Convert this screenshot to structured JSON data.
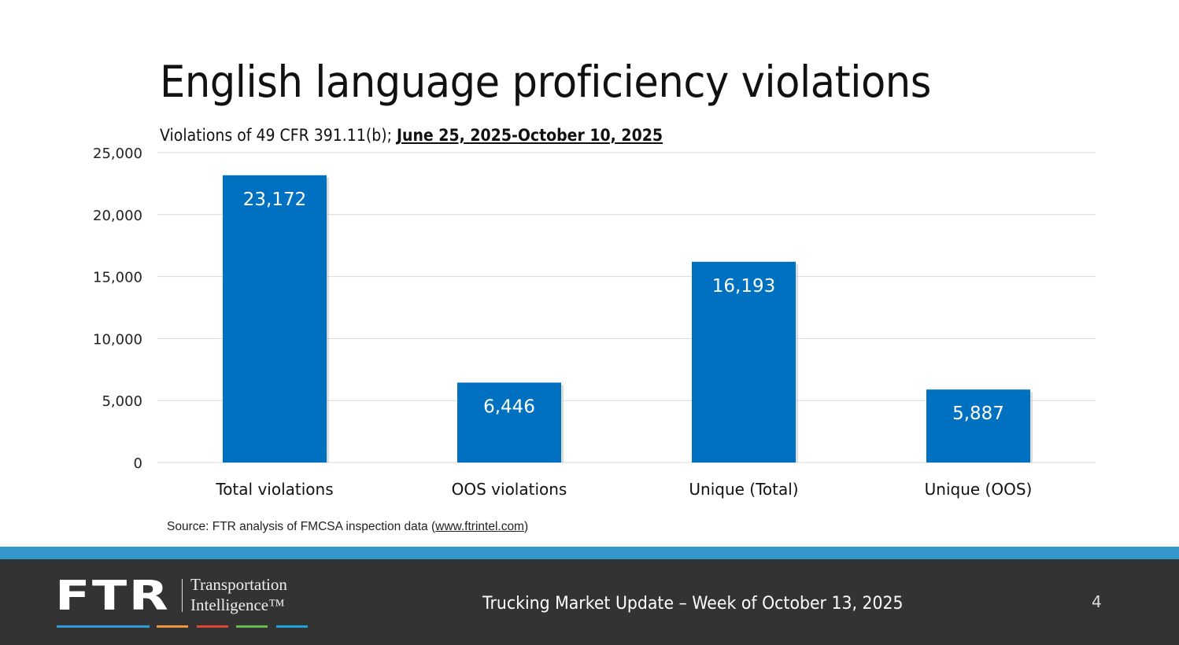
{
  "title": "English language proficiency violations",
  "subtitle": {
    "prefix": "Violations of 49 CFR 391.11(b); ",
    "range": "June 25, 2025-October 10, 2025"
  },
  "source": {
    "prefix": "Source: FTR analysis of FMCSA inspection data (",
    "link": "www.ftrintel.com",
    "suffix": ")"
  },
  "footer": {
    "logo_main": "FTR",
    "logo_line1": "Transportation",
    "logo_line2": "Intelligence™",
    "text": "Trucking Market Update – Week of October 13, 2025",
    "page_number": "4",
    "stripe_colors": [
      "#2e9bd6",
      "#f0963c",
      "#e0453a",
      "#6bb84b",
      "#1aa3d9"
    ]
  },
  "chart_data": {
    "type": "bar",
    "categories": [
      "Total violations",
      "OOS violations",
      "Unique (Total)",
      "Unique (OOS)"
    ],
    "values": [
      23172,
      6446,
      16193,
      5887
    ],
    "data_labels": [
      "23,172",
      "6,446",
      "16,193",
      "5,887"
    ],
    "ylim": [
      0,
      25000
    ],
    "yticks": [
      0,
      5000,
      10000,
      15000,
      20000,
      25000
    ],
    "ytick_labels": [
      "0",
      "5,000",
      "10,000",
      "15,000",
      "20,000",
      "25,000"
    ],
    "grid": true,
    "bar_color": "#0070c0",
    "xlabel": "",
    "ylabel": ""
  }
}
